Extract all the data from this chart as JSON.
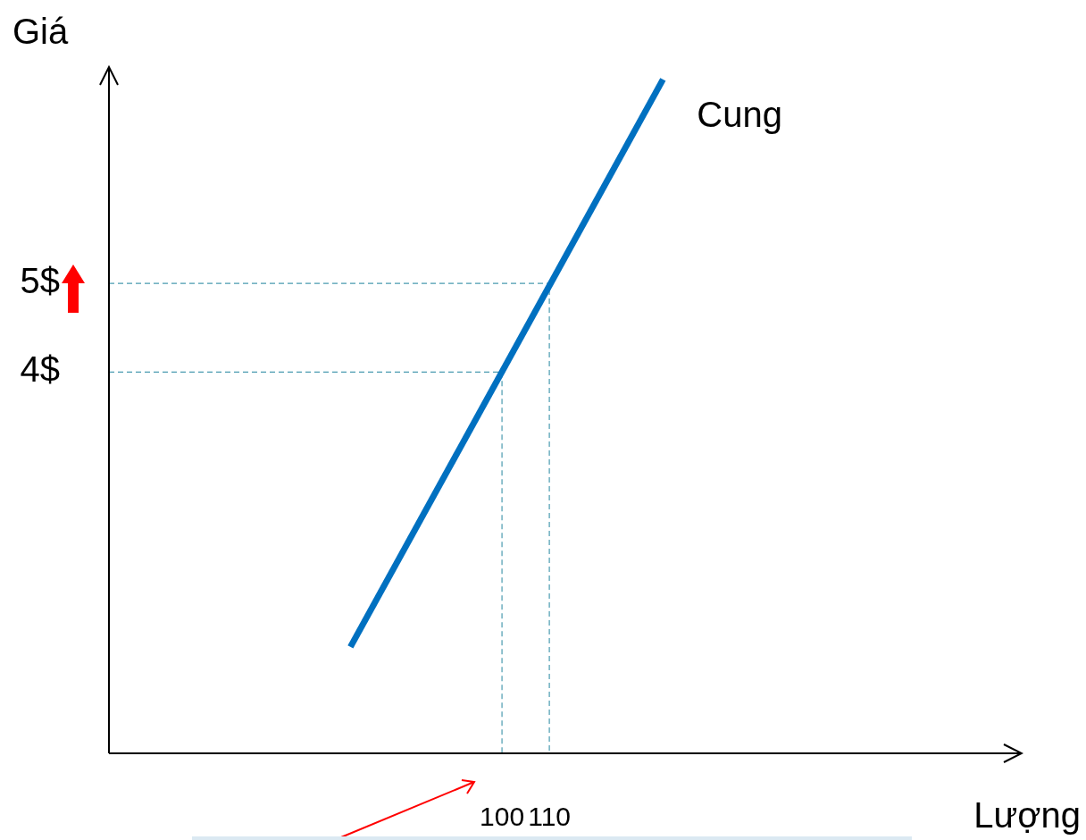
{
  "chart_data": {
    "type": "line",
    "xlabel": "Lượng",
    "ylabel": "Giá",
    "xlim": [
      17,
      209
    ],
    "ylim": [
      -0.3,
      7.4
    ],
    "xticks": [
      100,
      110
    ],
    "yticks": [
      {
        "value": 5,
        "label": "5$"
      },
      {
        "value": 4,
        "label": "4$"
      }
    ],
    "grid": false,
    "legend": false,
    "marker": "none",
    "series": [
      {
        "name": "Cung",
        "color": "#0070c0",
        "x": [
          68,
          134
        ],
        "values": [
          0.9,
          7.3
        ],
        "line_style": "solid"
      },
      {
        "color": "#4a9bb0",
        "x": [
          17,
          110,
          110
        ],
        "values": [
          5,
          5,
          -0.3
        ],
        "line_style": "dashed"
      },
      {
        "color": "#4a9bb0",
        "x": [
          17,
          100,
          100
        ],
        "values": [
          4,
          4,
          -0.3
        ],
        "line_style": "dashed"
      }
    ]
  }
}
